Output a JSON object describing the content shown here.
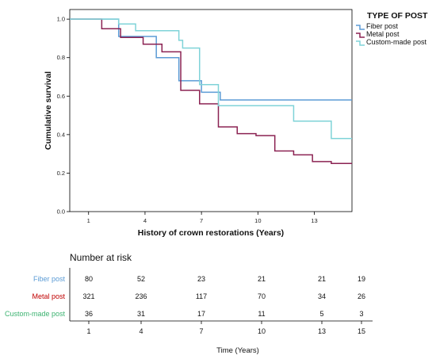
{
  "chart_data": {
    "type": "line",
    "step": true,
    "xlabel": "History of crown restorations (Years)",
    "ylabel": "Cumulative survival",
    "xlim": [
      0,
      15
    ],
    "ylim": [
      0,
      1.05
    ],
    "xticks": [
      1,
      4,
      7,
      10,
      13
    ],
    "xtick_labels": [
      "1",
      "4",
      "7",
      "10",
      "13"
    ],
    "yticks": [
      0.0,
      0.2,
      0.4,
      0.6,
      0.8,
      1.0
    ],
    "ytick_labels": [
      "0.0",
      "0.2",
      "0.4",
      "0.6",
      "0.8",
      "1.0"
    ],
    "grid": false,
    "legend": {
      "title": "TYPE OF POST",
      "position": "top-right"
    },
    "series": [
      {
        "name": "Fiber post",
        "color": "#5b9bd5",
        "points": [
          [
            0,
            1.0
          ],
          [
            2.6,
            1.0
          ],
          [
            2.6,
            0.91
          ],
          [
            4.6,
            0.91
          ],
          [
            4.6,
            0.8
          ],
          [
            5.6,
            0.8
          ],
          [
            5.6,
            0.8
          ],
          [
            5.8,
            0.8
          ],
          [
            5.8,
            0.68
          ],
          [
            7.0,
            0.68
          ],
          [
            7.0,
            0.62
          ],
          [
            8.0,
            0.62
          ],
          [
            8.0,
            0.58
          ],
          [
            15,
            0.58
          ]
        ]
      },
      {
        "name": "Metal post",
        "color": "#8b2252",
        "points": [
          [
            0,
            1.0
          ],
          [
            1.7,
            1.0
          ],
          [
            1.7,
            0.95
          ],
          [
            2.7,
            0.95
          ],
          [
            2.7,
            0.905
          ],
          [
            3.9,
            0.905
          ],
          [
            3.9,
            0.87
          ],
          [
            4.9,
            0.87
          ],
          [
            4.9,
            0.83
          ],
          [
            5.9,
            0.83
          ],
          [
            5.9,
            0.63
          ],
          [
            6.9,
            0.63
          ],
          [
            6.9,
            0.56
          ],
          [
            7.9,
            0.56
          ],
          [
            7.9,
            0.44
          ],
          [
            8.9,
            0.44
          ],
          [
            8.9,
            0.405
          ],
          [
            9.9,
            0.405
          ],
          [
            9.9,
            0.395
          ],
          [
            10.9,
            0.395
          ],
          [
            10.9,
            0.315
          ],
          [
            11.9,
            0.315
          ],
          [
            11.9,
            0.295
          ],
          [
            12.9,
            0.295
          ],
          [
            12.9,
            0.26
          ],
          [
            13.9,
            0.26
          ],
          [
            13.9,
            0.25
          ],
          [
            15,
            0.25
          ]
        ]
      },
      {
        "name": "Custom-made post",
        "color": "#7fd3d8",
        "points": [
          [
            0,
            1.0
          ],
          [
            2.6,
            1.0
          ],
          [
            2.6,
            0.975
          ],
          [
            3.5,
            0.975
          ],
          [
            3.5,
            0.94
          ],
          [
            5.8,
            0.94
          ],
          [
            5.8,
            0.89
          ],
          [
            6.0,
            0.89
          ],
          [
            6.0,
            0.85
          ],
          [
            6.9,
            0.85
          ],
          [
            6.9,
            0.66
          ],
          [
            7.9,
            0.66
          ],
          [
            7.9,
            0.55
          ],
          [
            11.9,
            0.55
          ],
          [
            11.9,
            0.47
          ],
          [
            13.9,
            0.47
          ],
          [
            13.9,
            0.38
          ],
          [
            15,
            0.38
          ]
        ]
      }
    ]
  },
  "risk_table": {
    "title": "Number at risk",
    "time_label": "Time (Years)",
    "times": [
      "1",
      "4",
      "7",
      "10",
      "13",
      "15"
    ],
    "rows": [
      {
        "label": "Fiber post",
        "color": "#5b9bd5",
        "values": [
          "80",
          "52",
          "23",
          "21",
          "21",
          "19"
        ]
      },
      {
        "label": "Metal post",
        "color": "#c00000",
        "values": [
          "321",
          "236",
          "117",
          "70",
          "34",
          "26"
        ]
      },
      {
        "label": "Custom-made post",
        "color": "#3cb371",
        "values": [
          "36",
          "31",
          "17",
          "11",
          "5",
          "3"
        ]
      }
    ]
  }
}
